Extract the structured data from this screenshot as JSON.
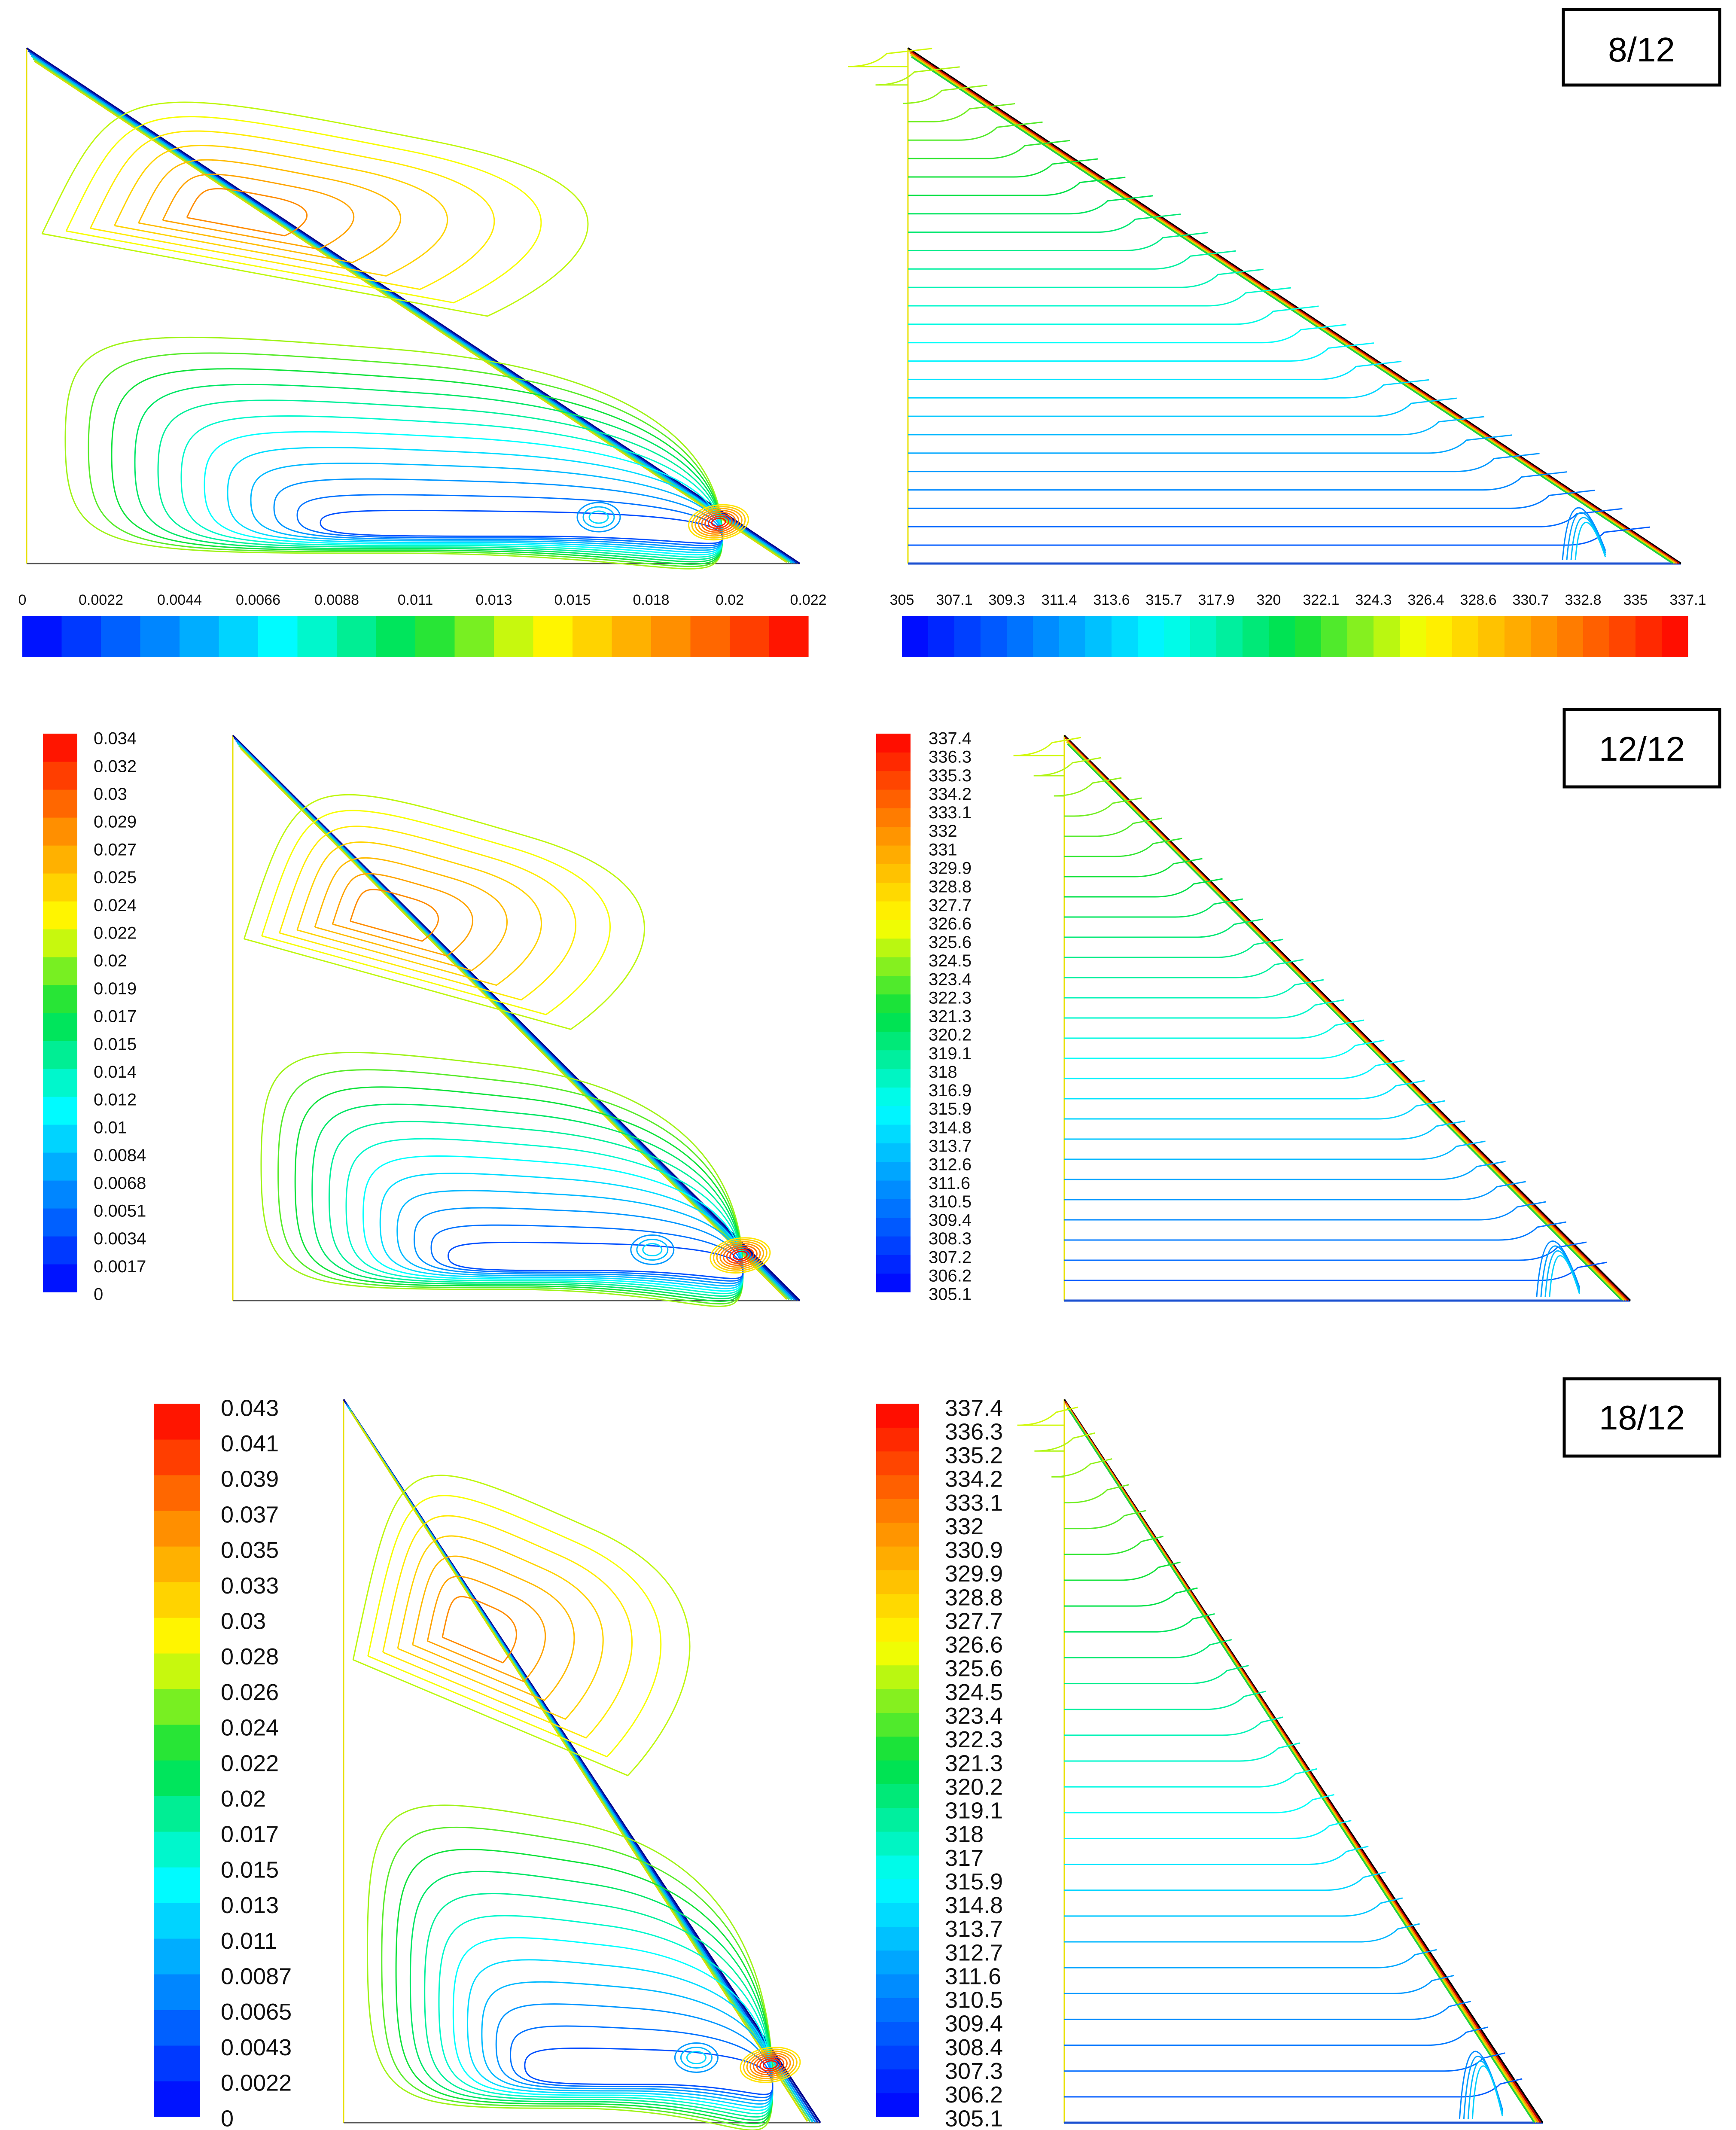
{
  "rows": [
    {
      "label": "8/12",
      "streamfunction": {
        "legend_orientation": "horizontal",
        "ticks": [
          "0",
          "0.0022",
          "0.0044",
          "0.0066",
          "0.0088",
          "0.011",
          "0.013",
          "0.015",
          "0.018",
          "0.02",
          "0.022"
        ],
        "min": 0,
        "max": 0.022,
        "color_levels": 20
      },
      "temperature": {
        "legend_orientation": "horizontal",
        "ticks": [
          "305",
          "307.1",
          "309.3",
          "311.4",
          "313.6",
          "315.7",
          "317.9",
          "320",
          "322.1",
          "324.3",
          "326.4",
          "328.6",
          "330.7",
          "332.8",
          "335",
          "337.1"
        ],
        "min": 305,
        "max": 337.1,
        "color_levels": 30
      }
    },
    {
      "label": "12/12",
      "streamfunction": {
        "legend_orientation": "vertical",
        "ticks": [
          "0.034",
          "0.032",
          "0.03",
          "0.029",
          "0.027",
          "0.025",
          "0.024",
          "0.022",
          "0.02",
          "0.019",
          "0.017",
          "0.015",
          "0.014",
          "0.012",
          "0.01",
          "0.0084",
          "0.0068",
          "0.0051",
          "0.0034",
          "0.0017",
          "0"
        ],
        "min": 0,
        "max": 0.034,
        "color_levels": 20
      },
      "temperature": {
        "legend_orientation": "vertical",
        "ticks": [
          "337.4",
          "336.3",
          "335.3",
          "334.2",
          "333.1",
          "332",
          "331",
          "329.9",
          "328.8",
          "327.7",
          "326.6",
          "325.6",
          "324.5",
          "323.4",
          "322.3",
          "321.3",
          "320.2",
          "319.1",
          "318",
          "316.9",
          "315.9",
          "314.8",
          "313.7",
          "312.6",
          "311.6",
          "310.5",
          "309.4",
          "308.3",
          "307.2",
          "306.2",
          "305.1"
        ],
        "min": 305.1,
        "max": 337.4,
        "color_levels": 30
      }
    },
    {
      "label": "18/12",
      "streamfunction": {
        "legend_orientation": "vertical",
        "ticks": [
          "0.043",
          "0.041",
          "0.039",
          "0.037",
          "0.035",
          "0.033",
          "0.03",
          "0.028",
          "0.026",
          "0.024",
          "0.022",
          "0.02",
          "0.017",
          "0.015",
          "0.013",
          "0.011",
          "0.0087",
          "0.0065",
          "0.0043",
          "0.0022",
          "0"
        ],
        "min": 0,
        "max": 0.043,
        "color_levels": 20
      },
      "temperature": {
        "legend_orientation": "vertical",
        "ticks": [
          "337.4",
          "336.3",
          "335.2",
          "334.2",
          "333.1",
          "332",
          "330.9",
          "329.9",
          "328.8",
          "327.7",
          "326.6",
          "325.6",
          "324.5",
          "323.4",
          "322.3",
          "321.3",
          "320.2",
          "319.1",
          "318",
          "317",
          "315.9",
          "314.8",
          "313.7",
          "312.7",
          "311.6",
          "310.5",
          "309.4",
          "308.4",
          "307.3",
          "306.2",
          "305.1"
        ],
        "min": 305.1,
        "max": 337.4,
        "color_levels": 30
      }
    }
  ]
}
